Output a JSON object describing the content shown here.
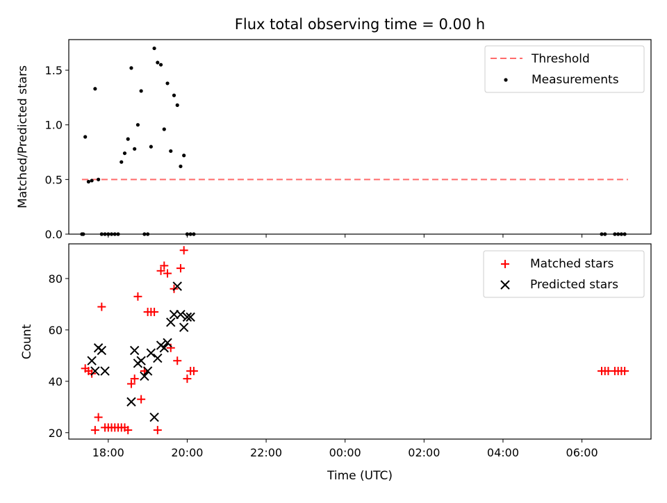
{
  "figure_title": "Flux total observing time = 0.00 h",
  "chart_data": [
    {
      "type": "scatter",
      "ylabel": "Matched/Predicted stars",
      "xlabel": "",
      "xlim": [
        "17:00",
        "07:45"
      ],
      "ylim": [
        0,
        1.78
      ],
      "yticks": [
        0.0,
        0.5,
        1.0,
        1.5
      ],
      "ytick_labels": [
        "0.0",
        "0.5",
        "1.0",
        "1.5"
      ],
      "legend_placement": "upper right",
      "threshold": {
        "name": "Threshold",
        "value": 0.5,
        "x_start": "17:20",
        "x_end": "07:10",
        "color": "#ff6b6b"
      },
      "series": [
        {
          "name": "Measurements",
          "marker": "dot",
          "color": "#000000",
          "x": [
            "17:20",
            "17:22",
            "17:25",
            "17:30",
            "17:35",
            "17:40",
            "17:45",
            "17:50",
            "17:55",
            "18:00",
            "18:05",
            "18:10",
            "18:15",
            "18:20",
            "18:25",
            "18:30",
            "18:35",
            "18:40",
            "18:45",
            "18:50",
            "18:55",
            "19:00",
            "19:05",
            "19:10",
            "19:15",
            "19:20",
            "19:25",
            "19:30",
            "19:35",
            "19:40",
            "19:45",
            "19:50",
            "19:55",
            "20:00",
            "20:05",
            "20:10",
            "06:30",
            "06:35",
            "06:50",
            "06:55",
            "07:00",
            "07:05"
          ],
          "y": [
            0,
            0,
            0.89,
            0.48,
            0.49,
            1.33,
            0.5,
            0,
            0,
            0,
            0,
            0,
            0,
            0.66,
            0.74,
            0.87,
            1.52,
            0.78,
            1.0,
            1.31,
            0,
            0,
            0.8,
            1.7,
            1.57,
            1.55,
            0.96,
            1.38,
            0.76,
            1.27,
            1.18,
            0.62,
            0.72,
            0,
            0,
            0,
            0,
            0,
            0,
            0,
            0,
            0
          ]
        }
      ]
    },
    {
      "type": "scatter",
      "xlabel": "Time (UTC)",
      "ylabel": "Count",
      "xlim": [
        "17:00",
        "07:45"
      ],
      "ylim": [
        17.5,
        93.5
      ],
      "yticks": [
        20,
        40,
        60,
        80
      ],
      "ytick_labels": [
        "20",
        "40",
        "60",
        "80"
      ],
      "xticks": [
        "18:00",
        "20:00",
        "22:00",
        "00:00",
        "02:00",
        "04:00",
        "06:00"
      ],
      "legend_placement": "upper right",
      "series": [
        {
          "name": "Matched stars",
          "marker": "plus",
          "color": "#ff0000",
          "x": [
            "17:25",
            "17:30",
            "17:35",
            "17:40",
            "17:45",
            "17:50",
            "17:55",
            "18:00",
            "18:05",
            "18:10",
            "18:15",
            "18:20",
            "18:25",
            "18:30",
            "18:35",
            "18:40",
            "18:45",
            "18:50",
            "18:55",
            "19:00",
            "19:05",
            "19:10",
            "19:15",
            "19:20",
            "19:25",
            "19:30",
            "19:35",
            "19:40",
            "19:45",
            "19:50",
            "19:55",
            "20:00",
            "20:05",
            "20:10",
            "06:30",
            "06:35",
            "06:40",
            "06:50",
            "06:55",
            "07:00",
            "07:05"
          ],
          "y": [
            45,
            44,
            43,
            21,
            26,
            69,
            22,
            22,
            22,
            22,
            22,
            22,
            22,
            21,
            39,
            41,
            73,
            33,
            44,
            67,
            67,
            67,
            21,
            83,
            85,
            82,
            53,
            76,
            48,
            84,
            91,
            41,
            44,
            44,
            44,
            44,
            44,
            44,
            44,
            44,
            44
          ]
        },
        {
          "name": "Predicted stars",
          "marker": "x",
          "color": "#000000",
          "x": [
            "17:35",
            "17:40",
            "17:45",
            "17:50",
            "17:55",
            "18:35",
            "18:40",
            "18:45",
            "18:50",
            "18:55",
            "19:00",
            "19:05",
            "19:10",
            "19:15",
            "19:20",
            "19:25",
            "19:30",
            "19:35",
            "19:40",
            "19:45",
            "19:50",
            "19:55",
            "20:00",
            "20:05"
          ],
          "y": [
            48,
            44,
            53,
            52,
            44,
            32,
            52,
            47,
            48,
            42,
            44,
            51,
            26,
            49,
            54,
            53,
            55,
            63,
            66,
            77,
            66,
            61,
            65,
            65
          ]
        }
      ]
    }
  ]
}
